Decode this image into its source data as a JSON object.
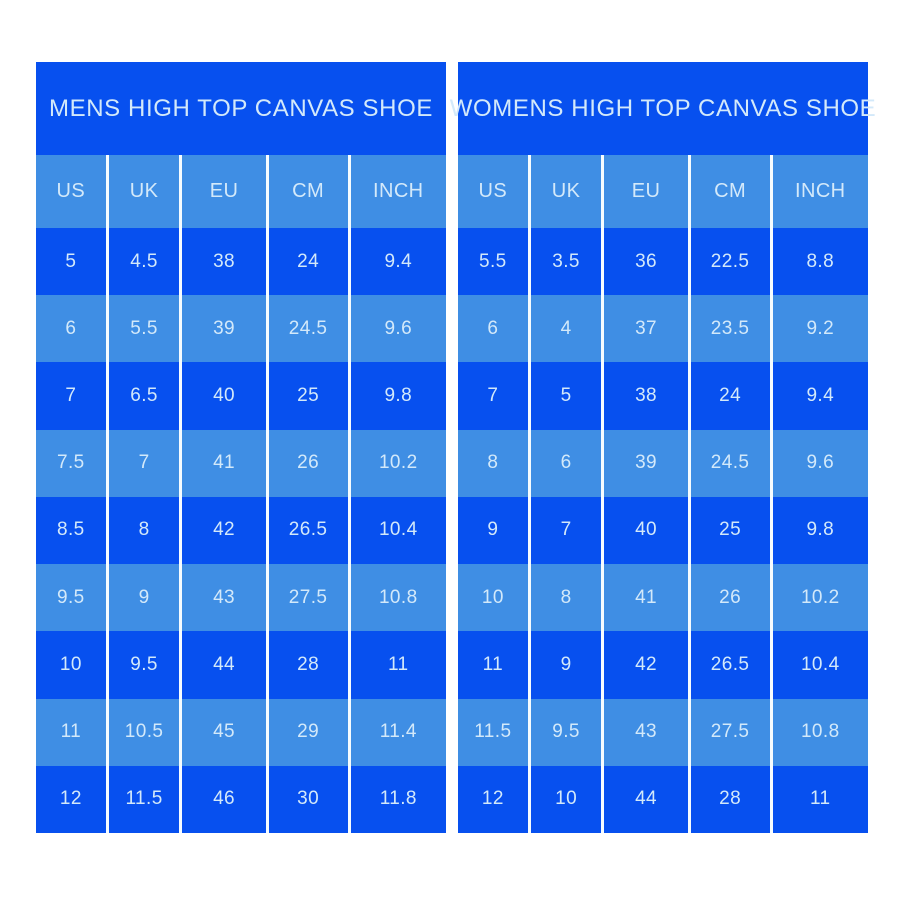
{
  "page": {
    "background_color": "#ffffff"
  },
  "colors": {
    "row_dark_blue": "#0750ef",
    "row_light_blue": "#3f8ee4",
    "text_pale_blue": "#d3e9fa",
    "divider_white": "#f6fcff"
  },
  "chart_data": [
    {
      "type": "table",
      "title": "MENS HIGH TOP CANVAS SHOE",
      "columns": [
        "US",
        "UK",
        "EU",
        "CM",
        "INCH"
      ],
      "rows": [
        [
          "5",
          "4.5",
          "38",
          "24",
          "9.4"
        ],
        [
          "6",
          "5.5",
          "39",
          "24.5",
          "9.6"
        ],
        [
          "7",
          "6.5",
          "40",
          "25",
          "9.8"
        ],
        [
          "7.5",
          "7",
          "41",
          "26",
          "10.2"
        ],
        [
          "8.5",
          "8",
          "42",
          "26.5",
          "10.4"
        ],
        [
          "9.5",
          "9",
          "43",
          "27.5",
          "10.8"
        ],
        [
          "10",
          "9.5",
          "44",
          "28",
          "11"
        ],
        [
          "11",
          "10.5",
          "45",
          "29",
          "11.4"
        ],
        [
          "12",
          "11.5",
          "46",
          "30",
          "11.8"
        ]
      ],
      "layout_hints": {
        "title_band": "dark-blue",
        "header_row": "light-blue",
        "data_rows": "alternate dark/light starting dark",
        "gridlines": "vertical white dividers only, below title band"
      }
    },
    {
      "type": "table",
      "title": "WOMENS HIGH TOP CANVAS SHOE",
      "columns": [
        "US",
        "UK",
        "EU",
        "CM",
        "INCH"
      ],
      "rows": [
        [
          "5.5",
          "3.5",
          "36",
          "22.5",
          "8.8"
        ],
        [
          "6",
          "4",
          "37",
          "23.5",
          "9.2"
        ],
        [
          "7",
          "5",
          "38",
          "24",
          "9.4"
        ],
        [
          "8",
          "6",
          "39",
          "24.5",
          "9.6"
        ],
        [
          "9",
          "7",
          "40",
          "25",
          "9.8"
        ],
        [
          "10",
          "8",
          "41",
          "26",
          "10.2"
        ],
        [
          "11",
          "9",
          "42",
          "26.5",
          "10.4"
        ],
        [
          "11.5",
          "9.5",
          "43",
          "27.5",
          "10.8"
        ],
        [
          "12",
          "10",
          "44",
          "28",
          "11"
        ]
      ],
      "layout_hints": {
        "title_band": "dark-blue",
        "header_row": "light-blue",
        "data_rows": "alternate dark/light starting dark",
        "gridlines": "vertical white dividers only, below title band"
      }
    }
  ]
}
